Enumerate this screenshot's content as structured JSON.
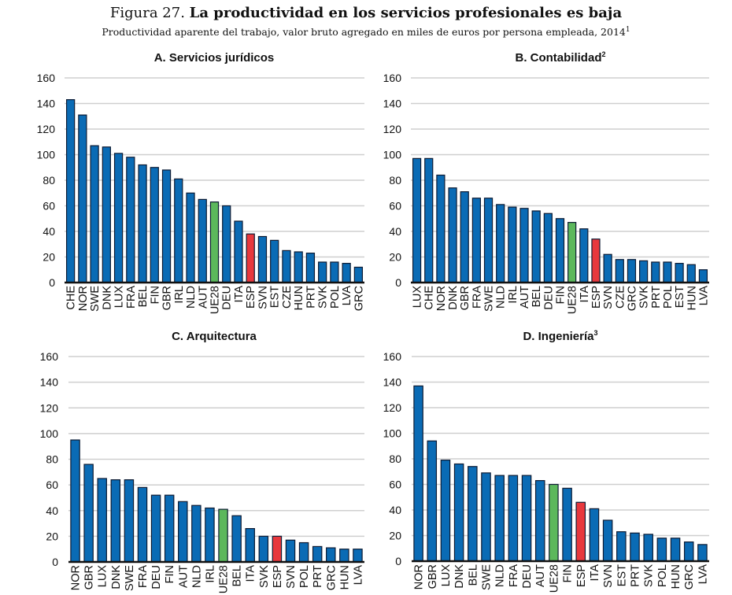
{
  "figure": {
    "number": "Figura 27.",
    "title": "La productividad en los servicios profesionales es baja",
    "subtitle": "Productividad aparente del trabajo, valor bruto agregado en miles de euros por persona empleada, 2014",
    "subtitle_note": "1"
  },
  "colors": {
    "country": "#0a6bb5",
    "eu_average": "#5cb85c",
    "spain": "#e8383d",
    "bar_outline": "#0d1b33",
    "gridline": "#cfcfcf"
  },
  "chart_data": [
    {
      "type": "bar",
      "title": "A. Servicios jurídicos",
      "title_note": "",
      "xlabel": "",
      "ylabel": "",
      "ylim": [
        0,
        160
      ],
      "yticks": [
        0,
        20,
        40,
        60,
        80,
        100,
        120,
        140,
        160
      ],
      "grid": true,
      "categories": [
        "CHE",
        "NOR",
        "SWE",
        "DNK",
        "LUX",
        "FRA",
        "BEL",
        "FIN",
        "GBR",
        "IRL",
        "NLD",
        "AUT",
        "UE28",
        "DEU",
        "ITA",
        "ESP",
        "SVN",
        "EST",
        "CZE",
        "HUN",
        "PRT",
        "SVK",
        "POL",
        "LVA",
        "GRC"
      ],
      "values": [
        143,
        131,
        107,
        106,
        101,
        98,
        92,
        90,
        88,
        81,
        70,
        65,
        63,
        60,
        48,
        38,
        36,
        33,
        25,
        24,
        23,
        16,
        16,
        15,
        12
      ]
    },
    {
      "type": "bar",
      "title": "B. Contabilidad",
      "title_note": "2",
      "xlabel": "",
      "ylabel": "",
      "ylim": [
        0,
        160
      ],
      "yticks": [
        0,
        20,
        40,
        60,
        80,
        100,
        120,
        140,
        160
      ],
      "grid": true,
      "categories": [
        "LUX",
        "CHE",
        "NOR",
        "DNK",
        "GBR",
        "FRA",
        "SWE",
        "NLD",
        "IRL",
        "AUT",
        "BEL",
        "DEU",
        "FIN",
        "UE28",
        "ITA",
        "ESP",
        "SVN",
        "CZE",
        "GRC",
        "SVK",
        "PRT",
        "POL",
        "EST",
        "HUN",
        "LVA"
      ],
      "values": [
        97,
        97,
        84,
        74,
        71,
        66,
        66,
        61,
        59,
        58,
        56,
        54,
        50,
        47,
        42,
        34,
        22,
        18,
        18,
        17,
        16,
        16,
        15,
        14,
        10
      ]
    },
    {
      "type": "bar",
      "title": "C. Arquitectura",
      "title_note": "",
      "xlabel": "",
      "ylabel": "",
      "ylim": [
        0,
        160
      ],
      "yticks": [
        0,
        20,
        40,
        60,
        80,
        100,
        120,
        140,
        160
      ],
      "grid": true,
      "categories": [
        "NOR",
        "GBR",
        "LUX",
        "DNK",
        "SWE",
        "FRA",
        "DEU",
        "FIN",
        "AUT",
        "NLD",
        "IRL",
        "UE28",
        "BEL",
        "ITA",
        "SVK",
        "ESP",
        "SVN",
        "POL",
        "PRT",
        "GRC",
        "HUN",
        "LVA"
      ],
      "values": [
        95,
        76,
        65,
        64,
        64,
        58,
        52,
        52,
        47,
        44,
        42,
        41,
        36,
        26,
        20,
        20,
        17,
        15,
        12,
        11,
        10,
        10
      ]
    },
    {
      "type": "bar",
      "title": "D. Ingeniería",
      "title_note": "3",
      "xlabel": "",
      "ylabel": "",
      "ylim": [
        0,
        160
      ],
      "yticks": [
        0,
        20,
        40,
        60,
        80,
        100,
        120,
        140,
        160
      ],
      "grid": true,
      "categories": [
        "NOR",
        "GBR",
        "LUX",
        "DNK",
        "BEL",
        "SWE",
        "NLD",
        "FRA",
        "DEU",
        "AUT",
        "UE28",
        "FIN",
        "ESP",
        "ITA",
        "SVN",
        "EST",
        "PRT",
        "SVK",
        "POL",
        "HUN",
        "GRC",
        "LVA"
      ],
      "values": [
        137,
        94,
        79,
        76,
        74,
        69,
        67,
        67,
        67,
        63,
        60,
        57,
        46,
        41,
        32,
        23,
        22,
        21,
        18,
        18,
        15,
        13
      ]
    }
  ]
}
